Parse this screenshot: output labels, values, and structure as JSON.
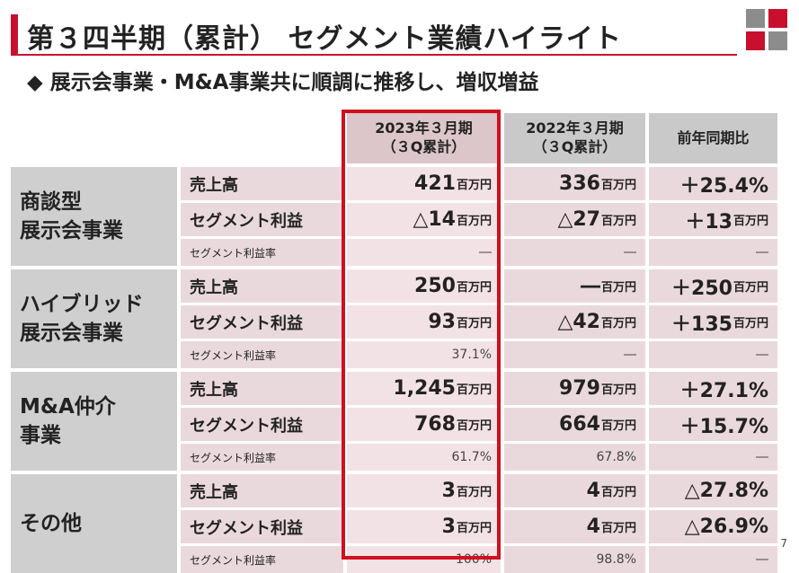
{
  "title": "第３四半期（累計） セグメント業績ハイライト",
  "subtitle": "◆ 展示会事業・M&A事業共に順調に推移し、増収増益",
  "colors": {
    "accent": "#c8102e",
    "logo_gray": "#8c8c8c"
  },
  "table": {
    "headers": {
      "current": [
        "2023年３月期",
        "（３Q累計）"
      ],
      "previous": [
        "2022年３月期",
        "（３Q累計）"
      ],
      "yoy": "前年同期比"
    },
    "unit_label": "百万円",
    "segments": [
      {
        "name": [
          "商談型",
          "展示会事業"
        ],
        "rows": [
          {
            "label": "売上高",
            "current": "421",
            "previous": "336",
            "yoy": "＋25.4%"
          },
          {
            "label": "セグメント利益",
            "current": "△14",
            "previous": "△27",
            "yoy": "＋13"
          },
          {
            "label": "セグメント利益率",
            "current": "―",
            "previous": "―",
            "yoy": "―"
          }
        ]
      },
      {
        "name": [
          "ハイブリッド",
          "展示会事業"
        ],
        "rows": [
          {
            "label": "売上高",
            "current": "250",
            "previous": "―",
            "yoy": "＋250"
          },
          {
            "label": "セグメント利益",
            "current": "93",
            "previous": "△42",
            "yoy": "＋135"
          },
          {
            "label": "セグメント利益率",
            "current": "37.1%",
            "previous": "―",
            "yoy": "―"
          }
        ]
      },
      {
        "name": [
          "M&A仲介",
          "事業"
        ],
        "rows": [
          {
            "label": "売上高",
            "current": "1,245",
            "previous": "979",
            "yoy": "＋27.1%"
          },
          {
            "label": "セグメント利益",
            "current": "768",
            "previous": "664",
            "yoy": "＋15.7%"
          },
          {
            "label": "セグメント利益率",
            "current": "61.7%",
            "previous": "67.8%",
            "yoy": "―"
          }
        ]
      },
      {
        "name": [
          "その他"
        ],
        "rows": [
          {
            "label": "売上高",
            "current": "3",
            "previous": "4",
            "yoy": "△27.8%"
          },
          {
            "label": "セグメント利益",
            "current": "3",
            "previous": "4",
            "yoy": "△26.9%"
          },
          {
            "label": "セグメント利益率",
            "current": "100%",
            "previous": "98.8%",
            "yoy": "―"
          }
        ]
      }
    ]
  },
  "page_number": "7"
}
